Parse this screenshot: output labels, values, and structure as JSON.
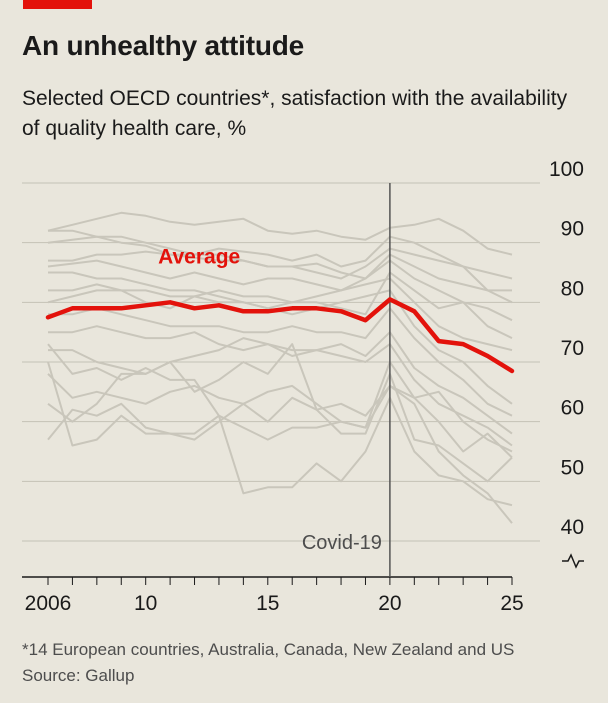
{
  "header": {
    "title": "An unhealthy attitude",
    "subtitle": "Selected OECD countries*, satisfaction with the availability of quality health care, %"
  },
  "footer": {
    "note": "*14 European countries, Australia, Canada, New Zealand and US",
    "source": "Source: Gallup"
  },
  "colors": {
    "accent": "#e3120b",
    "average_line": "#e3120b",
    "country_lines": "#c9c6bb",
    "grid": "#c4c1b6",
    "background": "#e9e6dc"
  },
  "chart_data": {
    "type": "line",
    "title": "An unhealthy attitude",
    "subtitle": "Selected OECD countries*, satisfaction with the availability of quality health care, %",
    "x": [
      2006,
      2007,
      2008,
      2009,
      2010,
      2011,
      2012,
      2013,
      2014,
      2015,
      2016,
      2017,
      2018,
      2019,
      2020,
      2021,
      2022,
      2023,
      2024,
      2025
    ],
    "x_ticks": [
      2006,
      2010,
      2015,
      2020,
      2025
    ],
    "x_tick_labels": [
      "2006",
      "10",
      "15",
      "20",
      "25"
    ],
    "ylim": [
      40,
      100
    ],
    "y_ticks": [
      40,
      50,
      60,
      70,
      80,
      90,
      100
    ],
    "y_axis_broken": true,
    "grid": true,
    "event_line": {
      "x": 2020,
      "label": "Covid-19"
    },
    "highlight": {
      "name": "Average",
      "values": [
        77.5,
        79,
        79,
        79,
        79.5,
        80,
        79,
        79.5,
        78.5,
        78.5,
        79,
        79,
        78.5,
        77,
        80.5,
        78.5,
        73.5,
        73,
        71,
        68.5
      ]
    },
    "series": [
      {
        "values": [
          92,
          93,
          94,
          95,
          94.5,
          93.5,
          93,
          93.5,
          94,
          92,
          91.5,
          92,
          91,
          90.5,
          92.5,
          93,
          94,
          92,
          89,
          88
        ]
      },
      {
        "values": [
          92,
          92,
          91,
          91,
          90,
          89,
          88,
          88,
          87,
          86,
          86,
          85,
          84,
          86,
          89,
          88,
          87,
          86,
          82,
          80
        ]
      },
      {
        "values": [
          90,
          90.5,
          91,
          90,
          89.5,
          88,
          88,
          89,
          88.5,
          88,
          87,
          88,
          86,
          87,
          91,
          90,
          88,
          86,
          85,
          84
        ]
      },
      {
        "values": [
          87,
          87,
          88,
          88,
          88.5,
          88,
          87.5,
          87,
          87,
          86,
          86,
          86.5,
          85,
          84,
          88,
          86,
          84,
          83,
          82,
          82
        ]
      },
      {
        "values": [
          86,
          86.5,
          87,
          86,
          85,
          84,
          85,
          84,
          83,
          84,
          84,
          83,
          82,
          84,
          87,
          84,
          82,
          80,
          76,
          74
        ]
      },
      {
        "values": [
          85,
          85,
          84,
          84,
          83,
          82,
          82,
          81,
          80,
          79,
          80,
          80,
          79,
          78,
          85,
          82,
          79,
          80,
          79,
          77
        ]
      },
      {
        "values": [
          82,
          82,
          83,
          82,
          82,
          81,
          81,
          82,
          81,
          81,
          80,
          81,
          82,
          83,
          84,
          80,
          76,
          74,
          73,
          72
        ]
      },
      {
        "values": [
          80,
          81,
          82,
          82,
          80,
          79,
          81,
          80,
          80,
          79,
          78,
          79,
          80,
          81,
          82,
          76,
          72,
          70,
          66,
          63
        ]
      },
      {
        "values": [
          78,
          78,
          79,
          78,
          77,
          76,
          76,
          76,
          75,
          75,
          76,
          75,
          75,
          74,
          79,
          74,
          70,
          67,
          63,
          61
        ]
      },
      {
        "values": [
          75,
          75,
          76,
          75,
          74,
          74,
          75,
          73,
          72,
          73,
          72,
          72,
          73,
          71,
          75,
          69,
          66,
          64,
          61,
          58
        ]
      },
      {
        "values": [
          72,
          72,
          70,
          69,
          68,
          70,
          71,
          72,
          74,
          73,
          71,
          72,
          71,
          70,
          73,
          67,
          63,
          61,
          59,
          56
        ]
      },
      {
        "values": [
          68,
          64,
          65,
          64,
          63,
          65,
          66,
          64,
          63,
          65,
          66,
          63,
          60,
          59,
          70,
          64,
          60,
          55,
          58,
          54
        ]
      },
      {
        "values": [
          63,
          60,
          63,
          68,
          68,
          70,
          65,
          67,
          70,
          68,
          73,
          62,
          63,
          61,
          66,
          64,
          65,
          60,
          57,
          55
        ]
      },
      {
        "values": [
          57,
          62,
          61,
          63,
          59,
          58,
          57,
          60,
          63,
          60,
          64,
          62,
          58,
          58,
          68,
          57,
          56,
          53,
          50,
          54
        ]
      },
      {
        "values": [
          70,
          56,
          57,
          61,
          58,
          58,
          58,
          61,
          59,
          57,
          59,
          59,
          60,
          59,
          66,
          63,
          55,
          51,
          48,
          43
        ]
      },
      {
        "values": [
          73,
          68,
          69,
          67,
          69,
          67,
          67,
          61,
          48,
          49,
          49,
          53,
          50,
          55,
          64,
          55,
          51,
          50,
          47,
          46
        ]
      }
    ]
  }
}
